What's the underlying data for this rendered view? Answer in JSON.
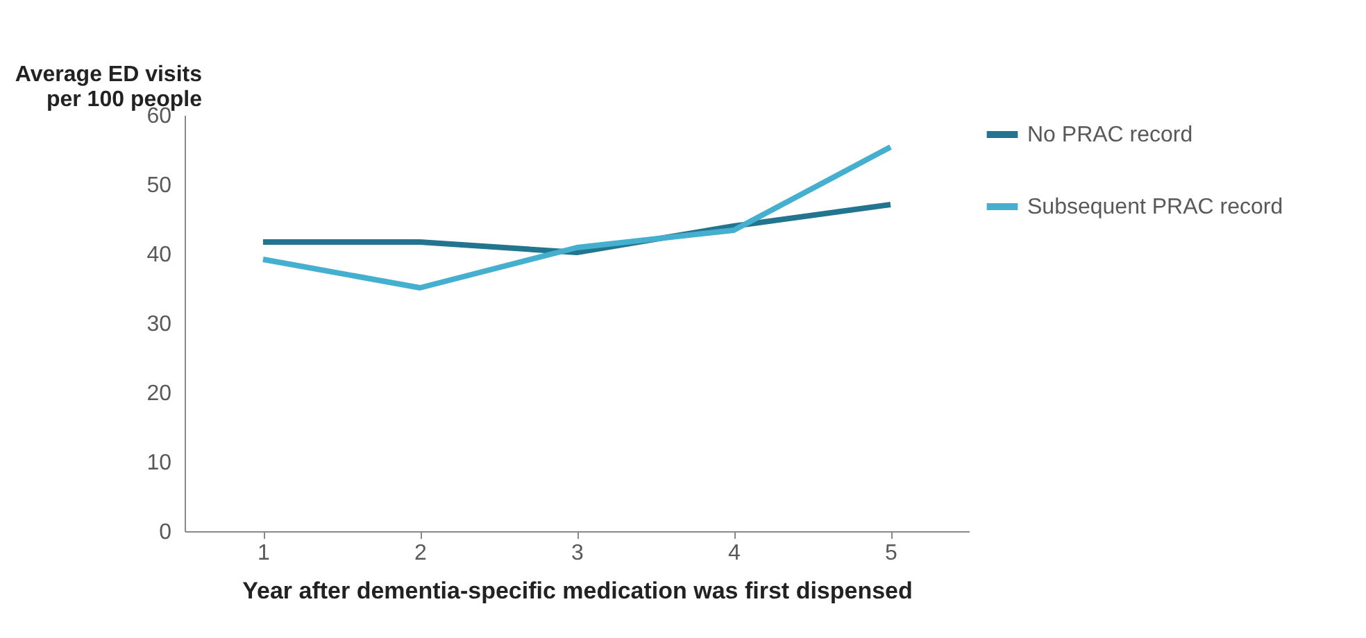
{
  "chart_data": {
    "type": "line",
    "ylabel": "Average ED visits per 100 people",
    "xlabel": "Year after dementia-specific  medication  was first dispensed",
    "categories": [
      "1",
      "2",
      "3",
      "4",
      "5"
    ],
    "series": [
      {
        "name": "No PRAC record",
        "color": "#23758f",
        "values": [
          41.7,
          41.7,
          40.2,
          44.0,
          47.1
        ]
      },
      {
        "name": "Subsequent PRAC record",
        "color": "#45afd0",
        "values": [
          39.2,
          35.1,
          40.9,
          43.4,
          55.4
        ]
      }
    ],
    "ylim": [
      0,
      60
    ],
    "yticks": [
      0,
      10,
      20,
      30,
      40,
      50,
      60
    ],
    "grid": false,
    "legend": "right",
    "marker": "none",
    "line_style": "solid"
  }
}
